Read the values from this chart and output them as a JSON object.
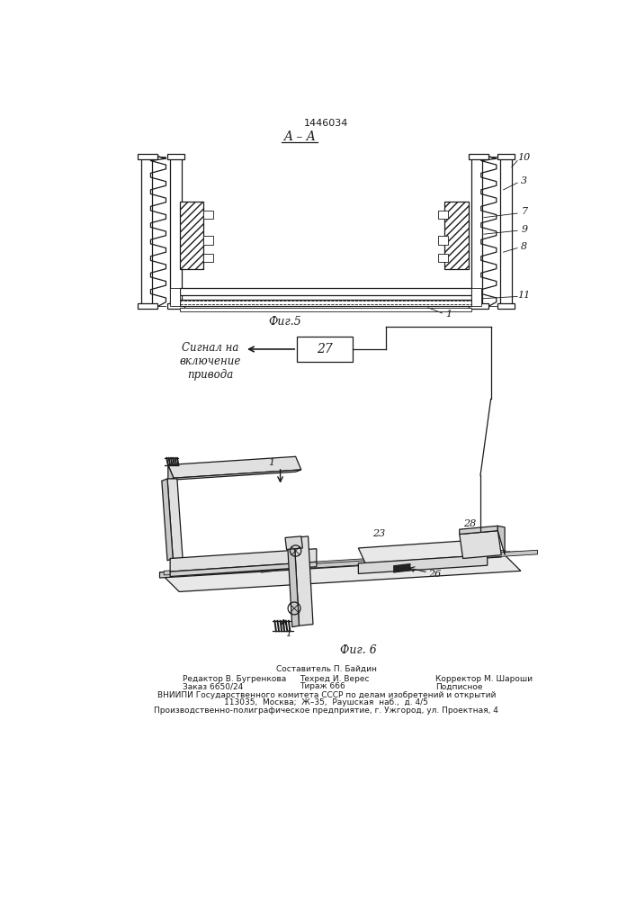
{
  "patent_number": "1446034",
  "section_label": "A – A",
  "fig5_label": "Фиг.5",
  "fig6_label": "Фиг. 6",
  "signal_text": "Сигнал на\nвключение\nпривода",
  "box27_label": "27",
  "label_10": "10",
  "label_3": "3",
  "label_7": "7",
  "label_9": "9",
  "label_8": "8",
  "label_11": "11",
  "label_1_beam": "1",
  "label_1a": "1",
  "label_1b": "1",
  "label_23": "23",
  "label_28": "28",
  "label_26": "26",
  "footer_line1": "Составитель П. Байдин",
  "footer_line2a": "Редактор В. Бугренкова",
  "footer_line2b": "Техред И. Верес",
  "footer_line2c": "Корректор М. Шароши",
  "footer_line3a": "Заказ 6650/24",
  "footer_line3b": "Тираж 666",
  "footer_line3c": "Подписное",
  "footer_line4": "ВНИИПИ Государственного комитета СССР по делам изобретений и открытий",
  "footer_line5": "113035,  Москва;  Ж–35,  Раушская  наб.,  д. 4/5",
  "footer_line6": "Производственно-полиграфическое предприятие, г. Ужгород, ул. Проектная, 4",
  "bg_color": "#ffffff",
  "line_color": "#1a1a1a"
}
